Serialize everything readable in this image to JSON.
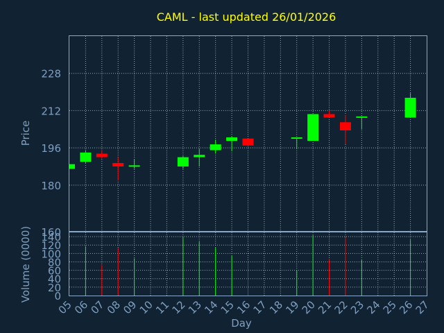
{
  "chart_data": [
    {
      "type": "candlestick",
      "title": "CAML - last updated 26/01/2026",
      "ylabel": "Price",
      "ylim": [
        160,
        244
      ],
      "yticks": [
        160,
        180,
        196,
        212,
        228
      ],
      "grid": true,
      "colors": {
        "up": "#00ff00",
        "down": "#ff0000"
      },
      "candles": [
        {
          "day": "05",
          "open": 187.0,
          "high": 189.0,
          "low": 187.0,
          "close": 189.0
        },
        {
          "day": "06",
          "open": 190.0,
          "high": 195.0,
          "low": 189.5,
          "close": 194.0
        },
        {
          "day": "07",
          "open": 193.5,
          "high": 195.0,
          "low": 191.5,
          "close": 192.0
        },
        {
          "day": "08",
          "open": 189.5,
          "high": 192.0,
          "low": 182.0,
          "close": 188.0
        },
        {
          "day": "09",
          "open": 188.0,
          "high": 191.0,
          "low": 187.0,
          "close": 188.5
        },
        {
          "day": "12",
          "open": 188.0,
          "high": 192.5,
          "low": 187.0,
          "close": 192.0
        },
        {
          "day": "13",
          "open": 192.0,
          "high": 195.5,
          "low": 188.0,
          "close": 193.0
        },
        {
          "day": "14",
          "open": 195.0,
          "high": 199.5,
          "low": 193.5,
          "close": 197.5
        },
        {
          "day": "15",
          "open": 199.0,
          "high": 201.0,
          "low": 194.5,
          "close": 200.5
        },
        {
          "day": "16",
          "open": 200.0,
          "high": 200.0,
          "low": 195.5,
          "close": 197.0
        },
        {
          "day": "19",
          "open": 200.0,
          "high": 200.5,
          "low": 195.5,
          "close": 200.5
        },
        {
          "day": "20",
          "open": 199.0,
          "high": 210.5,
          "low": 199.0,
          "close": 210.5
        },
        {
          "day": "21",
          "open": 210.5,
          "high": 212.0,
          "low": 209.0,
          "close": 209.0
        },
        {
          "day": "22",
          "open": 207.0,
          "high": 210.0,
          "low": 197.5,
          "close": 203.5
        },
        {
          "day": "23",
          "open": 209.0,
          "high": 209.5,
          "low": 204.0,
          "close": 209.5
        },
        {
          "day": "26",
          "open": 209.0,
          "high": 219.5,
          "low": 209.0,
          "close": 217.5
        }
      ]
    },
    {
      "type": "bar",
      "ylabel": "Volume (0000)",
      "xlabel": "Day",
      "ylim": [
        0,
        150
      ],
      "yticks": [
        0,
        20,
        40,
        60,
        80,
        100,
        120,
        140
      ],
      "categories": [
        "05",
        "06",
        "07",
        "08",
        "09",
        "10",
        "11",
        "12",
        "13",
        "14",
        "15",
        "16",
        "17",
        "18",
        "19",
        "20",
        "21",
        "22",
        "23",
        "24",
        "25",
        "26",
        "27"
      ],
      "bars": [
        {
          "day": "06",
          "value": 117,
          "direction": "up"
        },
        {
          "day": "07",
          "value": 72,
          "direction": "down"
        },
        {
          "day": "08",
          "value": 113,
          "direction": "down"
        },
        {
          "day": "09",
          "value": 88,
          "direction": "up"
        },
        {
          "day": "12",
          "value": 138,
          "direction": "up"
        },
        {
          "day": "13",
          "value": 128,
          "direction": "up"
        },
        {
          "day": "14",
          "value": 114,
          "direction": "up"
        },
        {
          "day": "15",
          "value": 95,
          "direction": "up"
        },
        {
          "day": "16",
          "value": 80,
          "direction": "down"
        },
        {
          "day": "19",
          "value": 60,
          "direction": "up"
        },
        {
          "day": "20",
          "value": 143,
          "direction": "up"
        },
        {
          "day": "21",
          "value": 85,
          "direction": "down"
        },
        {
          "day": "22",
          "value": 138,
          "direction": "down"
        },
        {
          "day": "23",
          "value": 85,
          "direction": "up"
        },
        {
          "day": "26",
          "value": 133,
          "direction": "up"
        }
      ]
    }
  ]
}
